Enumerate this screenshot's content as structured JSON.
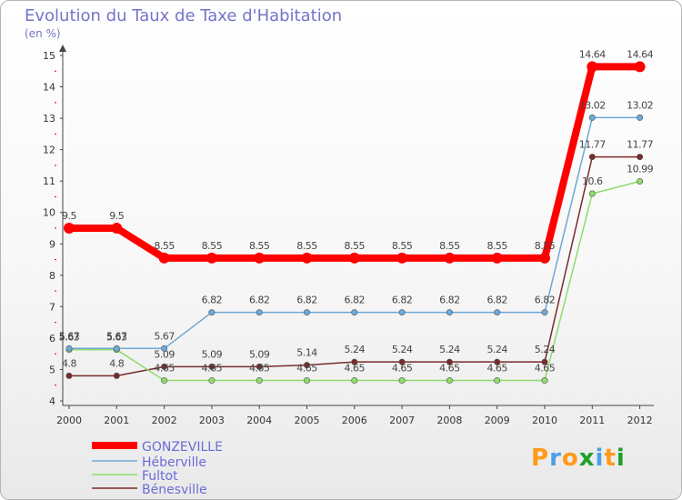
{
  "title": "Evolution du Taux de Taxe d'Habitation",
  "unit_label": "(en %)",
  "brand": "Proxiti",
  "chart_data": {
    "type": "line",
    "title": "Evolution du Taux de Taxe d'Habitation",
    "ylabel": "(en %)",
    "xlabel": "",
    "ylim": [
      4,
      15
    ],
    "yticks": [
      4,
      5,
      6,
      7,
      8,
      9,
      10,
      11,
      12,
      13,
      14,
      15
    ],
    "categories": [
      "2000",
      "2001",
      "2002",
      "2003",
      "2004",
      "2005",
      "2006",
      "2007",
      "2008",
      "2009",
      "2010",
      "2011",
      "2012"
    ],
    "series": [
      {
        "name": "GONZEVILLE",
        "color": "#ff0000",
        "values": [
          9.5,
          9.5,
          8.55,
          8.55,
          8.55,
          8.55,
          8.55,
          8.55,
          8.55,
          8.55,
          8.55,
          14.64,
          14.64
        ],
        "labels": [
          "9.5",
          "9.5",
          "8.55",
          "8.55",
          "8.55",
          "8.55",
          "8.55",
          "8.55",
          "8.55",
          "8.55",
          "8.55",
          "14.64",
          "14.64"
        ]
      },
      {
        "name": "Héberville",
        "color": "#6fa8d6",
        "values": [
          5.67,
          5.67,
          5.67,
          6.82,
          6.82,
          6.82,
          6.82,
          6.82,
          6.82,
          6.82,
          6.82,
          13.02,
          13.02
        ],
        "labels": [
          "5.67",
          "5.67",
          "5.67",
          "6.82",
          "6.82",
          "6.82",
          "6.82",
          "6.82",
          "6.82",
          "6.82",
          "6.82",
          "13.02",
          "13.02"
        ]
      },
      {
        "name": "Fultot",
        "color": "#8fdc6c",
        "values": [
          5.63,
          5.63,
          4.65,
          4.65,
          4.65,
          4.65,
          4.65,
          4.65,
          4.65,
          4.65,
          4.65,
          10.6,
          10.99
        ],
        "labels": [
          "5.63",
          "5.63",
          "4.65",
          "4.65",
          "4.65",
          "4.65",
          "4.65",
          "4.65",
          "4.65",
          "4.65",
          "4.65",
          "10.6",
          "10.99"
        ]
      },
      {
        "name": "Bénesville",
        "color": "#7a2a2a",
        "values": [
          4.8,
          4.8,
          5.09,
          5.09,
          5.09,
          5.14,
          5.24,
          5.24,
          5.24,
          5.24,
          5.24,
          11.77,
          11.77
        ],
        "labels": [
          "4.8",
          "4.8",
          "5.09",
          "5.09",
          "5.09",
          "5.14",
          "5.24",
          "5.24",
          "5.24",
          "5.24",
          "5.24",
          "11.77",
          "11.77"
        ]
      }
    ]
  }
}
